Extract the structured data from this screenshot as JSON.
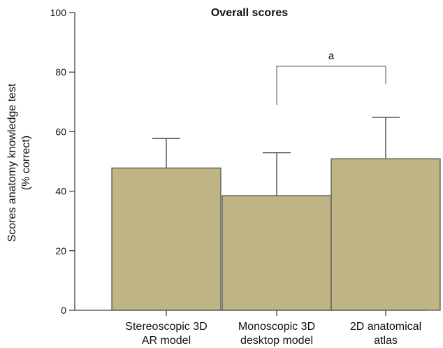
{
  "chart_data": {
    "type": "bar",
    "title": "Overall scores",
    "ylabel_lines": [
      "Scores anatomy knowledge test",
      "(% correct)"
    ],
    "xlabel": "",
    "categories": [
      [
        "Stereoscopic 3D",
        "AR model"
      ],
      [
        "Monoscopic 3D",
        "desktop model"
      ],
      [
        "2D anatomical",
        "atlas"
      ]
    ],
    "values": [
      47.8,
      38.5,
      50.9
    ],
    "error_upper": [
      57.7,
      52.9,
      64.8
    ],
    "ylim": [
      0,
      100
    ],
    "yticks": [
      0,
      20,
      40,
      60,
      80,
      100
    ],
    "grid": false,
    "bar_color": "#bfb483",
    "bar_edge_color": "#4a4a4a",
    "annotations": [
      {
        "text": "a",
        "from_category": 1,
        "to_category": 2,
        "y": 82,
        "left_drop_to": 69,
        "right_drop_to": 76
      }
    ]
  }
}
